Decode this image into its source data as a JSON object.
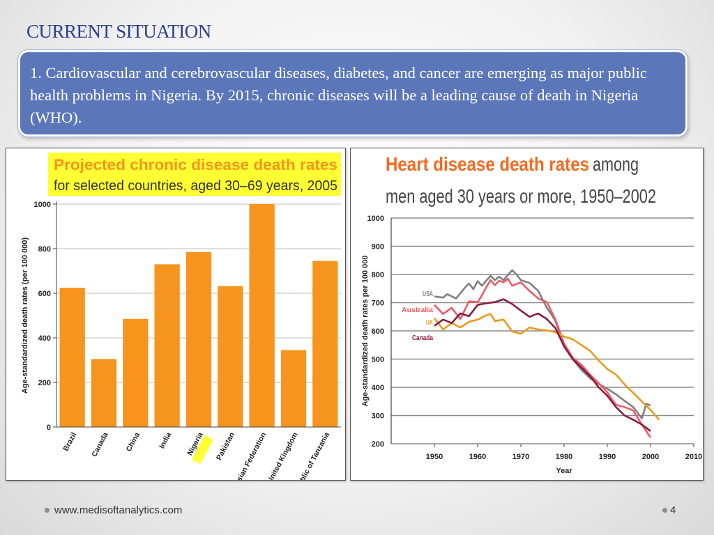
{
  "slide": {
    "title": "CURRENT SITUATION",
    "callout": "1. Cardiovascular and cerebrovascular diseases, diabetes, and cancer are emerging as major public health problems in Nigeria. By 2015, chronic diseases will be a leading cause of death in Nigeria (WHO).",
    "footer_url": "www.medisoftanalytics.com",
    "page_number": "4"
  },
  "chart_data": [
    {
      "type": "bar",
      "title": "Projected chronic disease death rates",
      "subtitle": "for selected countries, aged 30–69 years, 2005",
      "ylabel": "Age-standardized death rates (per 100 000)",
      "xlabel": "",
      "ylim": [
        0,
        1000
      ],
      "yticks": [
        0,
        200,
        400,
        600,
        800,
        1000
      ],
      "categories": [
        "Brazil",
        "Canada",
        "China",
        "India",
        "Nigeria",
        "Pakistan",
        "Russian Federation",
        "United Kingdom",
        "United Republic of Tanzania"
      ],
      "values": [
        625,
        305,
        485,
        730,
        785,
        632,
        1000,
        345,
        745
      ],
      "highlight": "Nigeria",
      "bar_color": "#f7941d",
      "highlight_color": "#ffff33",
      "grid": true
    },
    {
      "type": "line",
      "title": "Heart disease death rates",
      "subtitle_inline": "among",
      "subtitle": "men aged 30 years or more, 1950–2002",
      "xlabel": "Year",
      "ylabel": "Age-standardized death rates per 100 000",
      "xlim": [
        1950,
        2010
      ],
      "ylim": [
        200,
        1000
      ],
      "xticks": [
        1950,
        1960,
        1970,
        1980,
        1990,
        2000,
        2010
      ],
      "yticks": [
        200,
        300,
        400,
        500,
        600,
        700,
        800,
        900,
        1000
      ],
      "grid": true,
      "title_color": "#f26b21",
      "series": [
        {
          "name": "USA",
          "color": "#808080",
          "x": [
            1950,
            1952,
            1953,
            1955,
            1957,
            1958,
            1959,
            1960,
            1961,
            1962,
            1963,
            1964,
            1965,
            1966,
            1967,
            1968,
            1969,
            1970,
            1972,
            1974,
            1975,
            1976,
            1977,
            1978,
            1980,
            1982,
            1984,
            1986,
            1988,
            1990,
            1992,
            1994,
            1996,
            1998,
            1999,
            2000
          ],
          "y": [
            722,
            718,
            730,
            715,
            752,
            768,
            748,
            776,
            760,
            778,
            795,
            780,
            792,
            780,
            798,
            815,
            800,
            780,
            770,
            742,
            712,
            682,
            660,
            635,
            545,
            500,
            462,
            432,
            412,
            395,
            375,
            352,
            330,
            290,
            342,
            335
          ]
        },
        {
          "name": "Australia",
          "color": "#ee5a63",
          "x": [
            1950,
            1952,
            1954,
            1956,
            1958,
            1960,
            1961,
            1962,
            1963,
            1964,
            1965,
            1966,
            1967,
            1968,
            1970,
            1972,
            1974,
            1976,
            1978,
            1980,
            1982,
            1984,
            1986,
            1988,
            1990,
            1992,
            1994,
            1996,
            1998,
            2000
          ],
          "y": [
            692,
            660,
            682,
            642,
            705,
            702,
            726,
            755,
            780,
            762,
            778,
            772,
            785,
            760,
            772,
            742,
            715,
            702,
            640,
            555,
            505,
            480,
            445,
            415,
            382,
            338,
            330,
            318,
            268,
            222
          ]
        },
        {
          "name": "UK",
          "color": "#e99a1c",
          "x": [
            1950,
            1952,
            1954,
            1956,
            1958,
            1960,
            1962,
            1963,
            1964,
            1966,
            1968,
            1970,
            1972,
            1974,
            1976,
            1978,
            1980,
            1982,
            1984,
            1986,
            1988,
            1990,
            1992,
            1994,
            1996,
            1998,
            2000,
            2002
          ],
          "y": [
            645,
            605,
            628,
            612,
            632,
            640,
            655,
            660,
            635,
            640,
            598,
            590,
            612,
            605,
            602,
            595,
            580,
            570,
            550,
            530,
            495,
            465,
            445,
            410,
            380,
            350,
            320,
            285
          ]
        },
        {
          "name": "Canada",
          "color": "#8b1c3d",
          "x": [
            1950,
            1952,
            1954,
            1956,
            1958,
            1960,
            1962,
            1964,
            1966,
            1968,
            1970,
            1972,
            1974,
            1976,
            1978,
            1980,
            1982,
            1984,
            1986,
            1988,
            1990,
            1992,
            1994,
            1996,
            1998,
            2000
          ],
          "y": [
            618,
            640,
            628,
            662,
            652,
            692,
            698,
            702,
            712,
            695,
            672,
            650,
            662,
            642,
            610,
            545,
            500,
            470,
            440,
            400,
            370,
            330,
            300,
            285,
            268,
            245
          ]
        }
      ]
    }
  ]
}
